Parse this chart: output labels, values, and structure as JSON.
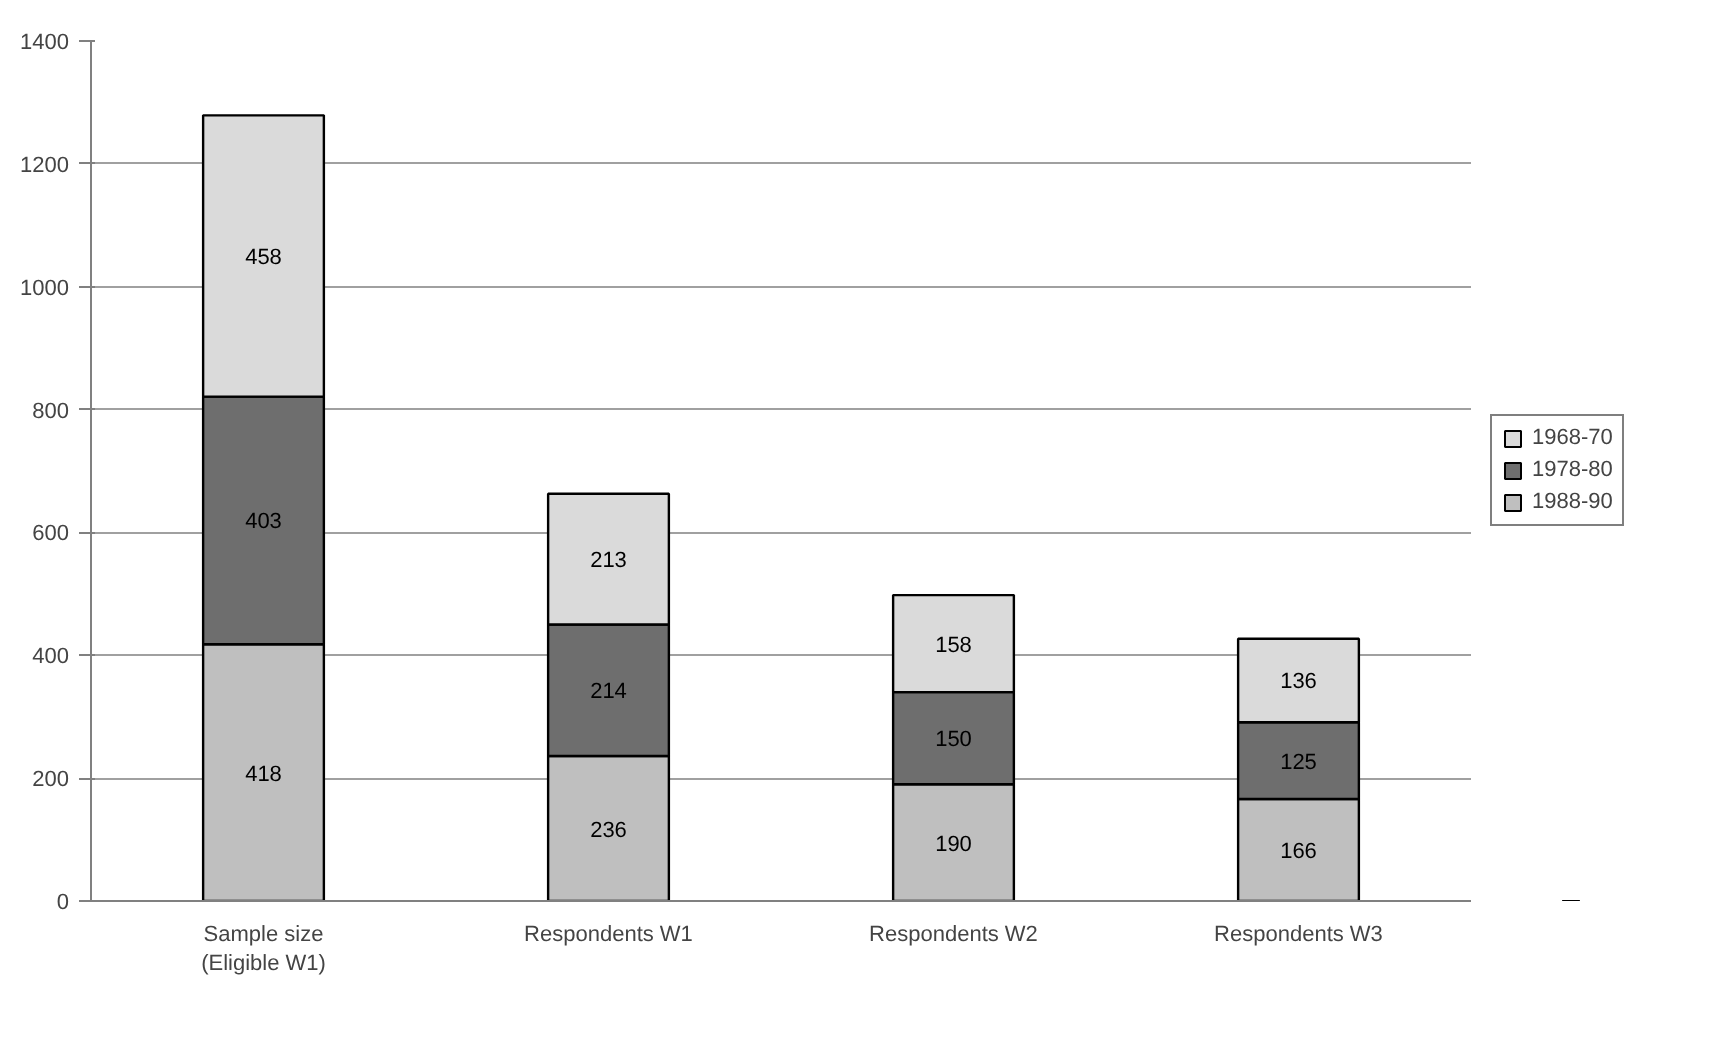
{
  "chart_data": {
    "type": "bar",
    "stacked": true,
    "categories": [
      "Sample size\n(Eligible W1)",
      "Respondents W1",
      "Respondents W2",
      "Respondents W3"
    ],
    "series": [
      {
        "name": "1988-90",
        "color": "#bfbfbf",
        "values": [
          418,
          236,
          190,
          166
        ]
      },
      {
        "name": "1978-80",
        "color": "#6e6e6e",
        "values": [
          403,
          214,
          150,
          125
        ]
      },
      {
        "name": "1968-70",
        "color": "#dadada",
        "values": [
          458,
          213,
          158,
          136
        ]
      }
    ],
    "ylim": [
      0,
      1400
    ],
    "yticks": [
      0,
      200,
      400,
      600,
      800,
      1000,
      1200,
      1400
    ],
    "grid": "y",
    "legend": "right",
    "data_labels": true
  }
}
